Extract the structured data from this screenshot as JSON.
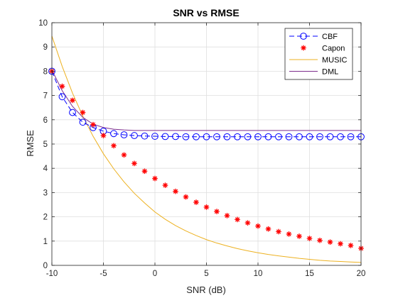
{
  "chart_data": {
    "type": "line",
    "title": "SNR vs RMSE",
    "xlabel": "SNR (dB)",
    "ylabel": "RMSE",
    "xlim": [
      -10,
      20
    ],
    "ylim": [
      0,
      10
    ],
    "xticks": [
      -10,
      -5,
      0,
      5,
      10,
      15,
      20
    ],
    "yticks": [
      0,
      1,
      2,
      3,
      4,
      5,
      6,
      7,
      8,
      9,
      10
    ],
    "grid": true,
    "legend_position": "top-right",
    "x": [
      -10,
      -9,
      -8,
      -7,
      -6,
      -5,
      -4,
      -3,
      -2,
      -1,
      0,
      1,
      2,
      3,
      4,
      5,
      6,
      7,
      8,
      9,
      10,
      11,
      12,
      13,
      14,
      15,
      16,
      17,
      18,
      19,
      20
    ],
    "series": [
      {
        "name": "CBF",
        "color": "#0000ff",
        "line": "dashed",
        "marker": "circle",
        "values": [
          8.0,
          6.95,
          6.3,
          5.9,
          5.68,
          5.53,
          5.43,
          5.38,
          5.35,
          5.33,
          5.32,
          5.31,
          5.31,
          5.3,
          5.3,
          5.3,
          5.3,
          5.3,
          5.3,
          5.3,
          5.3,
          5.3,
          5.3,
          5.3,
          5.3,
          5.3,
          5.3,
          5.3,
          5.3,
          5.3,
          5.3
        ]
      },
      {
        "name": "Capon",
        "color": "#ff0000",
        "line": "none",
        "marker": "asterisk",
        "values": [
          8.0,
          7.38,
          6.8,
          6.3,
          5.8,
          5.35,
          4.93,
          4.55,
          4.2,
          3.88,
          3.58,
          3.3,
          3.05,
          2.82,
          2.6,
          2.4,
          2.22,
          2.05,
          1.89,
          1.75,
          1.62,
          1.5,
          1.39,
          1.29,
          1.2,
          1.11,
          1.03,
          0.96,
          0.89,
          0.82,
          0.7
        ]
      },
      {
        "name": "MUSIC",
        "color": "#edb120",
        "line": "solid",
        "marker": "none",
        "values": [
          9.45,
          8.2,
          7.1,
          6.15,
          5.32,
          4.6,
          3.98,
          3.44,
          2.97,
          2.57,
          2.2,
          1.9,
          1.64,
          1.42,
          1.23,
          1.06,
          0.92,
          0.8,
          0.69,
          0.6,
          0.52,
          0.45,
          0.39,
          0.34,
          0.29,
          0.25,
          0.21,
          0.18,
          0.16,
          0.14,
          0.12
        ]
      },
      {
        "name": "DML",
        "color": "#7e2f8e",
        "line": "solid",
        "marker": "none",
        "values": [
          8.05,
          7.2,
          6.55,
          6.1,
          5.82,
          5.68,
          5.61,
          5.58,
          5.56,
          5.56,
          5.56,
          5.56,
          5.56,
          5.56,
          5.56,
          5.56,
          5.56,
          5.56,
          5.56,
          5.56,
          5.56,
          5.56,
          5.56,
          5.56,
          5.56,
          5.56,
          5.56,
          5.56,
          5.56,
          5.56,
          5.56
        ]
      }
    ]
  }
}
